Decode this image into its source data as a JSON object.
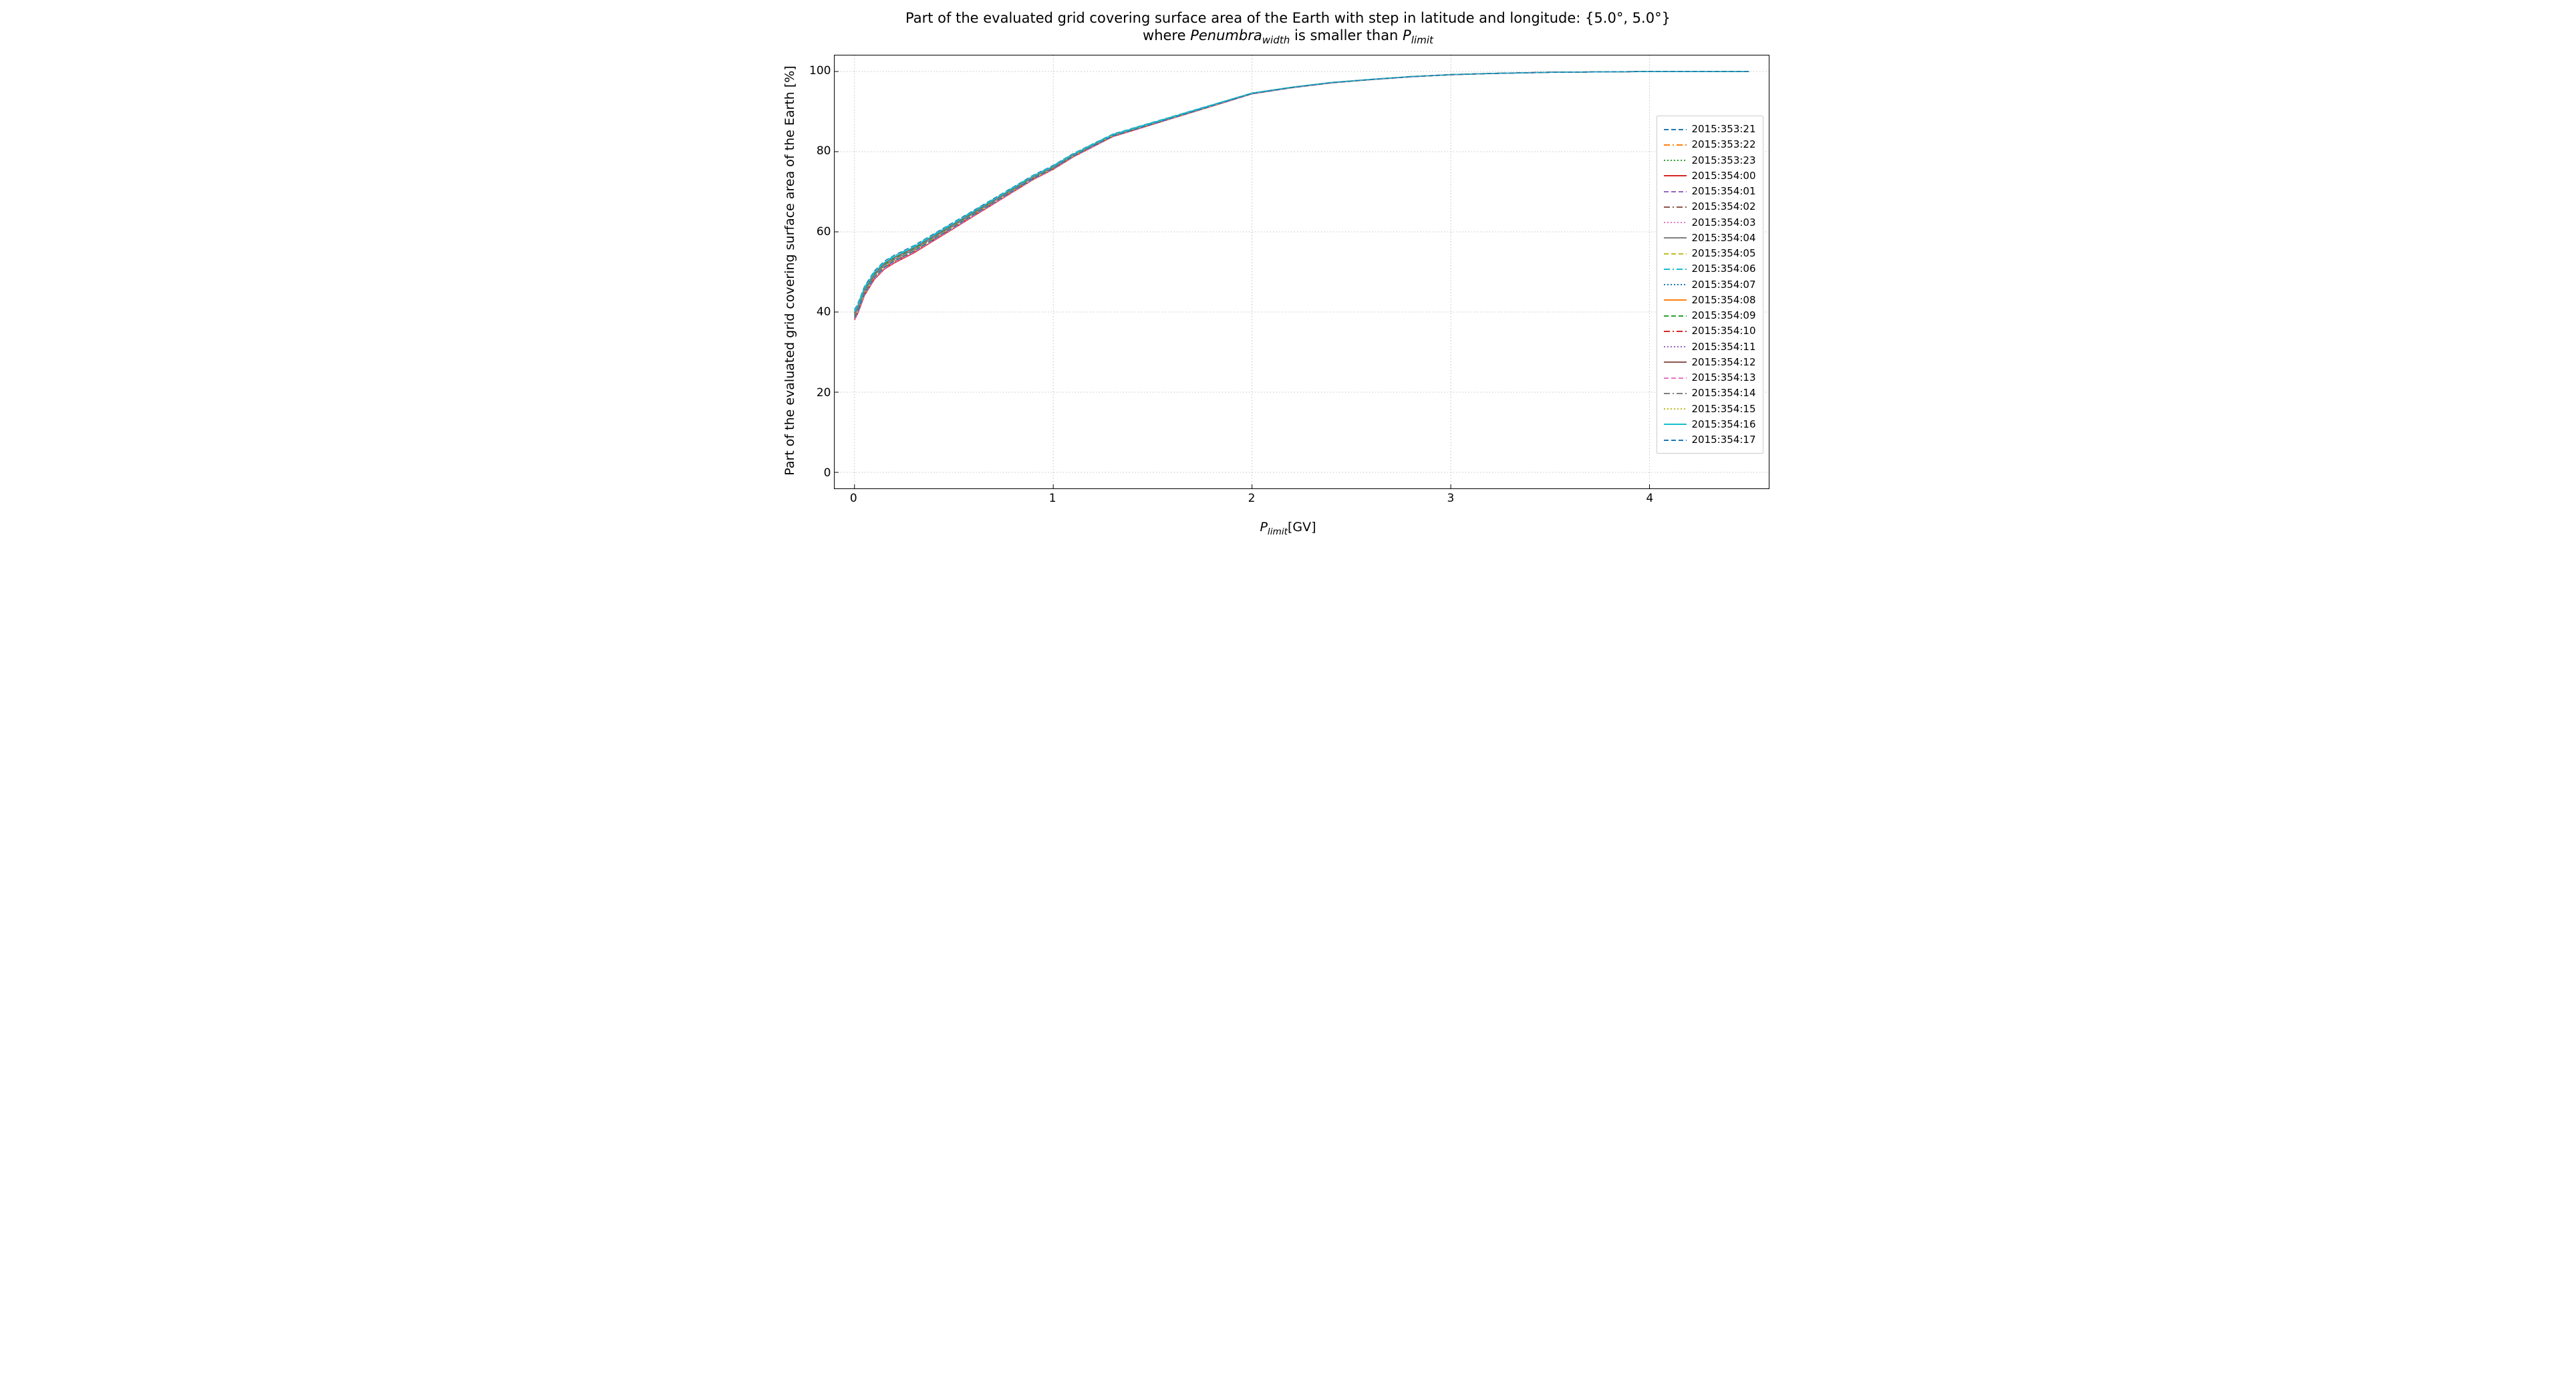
{
  "chart": {
    "type": "line",
    "title_line1_pre": "Part of the evaluated grid covering surface area of the Earth with step in latitude and longitude: {5.0°, 5.0°}",
    "title_line2_pre": "where ",
    "title_line2_ital1": "Penumbra",
    "title_line2_sub1": "width",
    "title_line2_mid": " is smaller than ",
    "title_line2_ital2": "P",
    "title_line2_sub2": "limit",
    "title_fontsize": 21,
    "xlabel_ital": "P",
    "xlabel_sub": "limit",
    "xlabel_suffix": "[GV]",
    "ylabel": "Part of the evaluated grid covering surface area of the Earth  [%]",
    "label_fontsize": 19,
    "tick_fontsize": 17,
    "xlim": [
      -0.1,
      4.6
    ],
    "ylim": [
      -4,
      104
    ],
    "xticks": [
      0,
      1,
      2,
      3,
      4
    ],
    "yticks": [
      0,
      20,
      40,
      60,
      80,
      100
    ],
    "grid_color": "#b0b0b0",
    "grid_dash": "1.5 3",
    "grid_width": 0.8,
    "background_color": "#ffffff",
    "spine_color": "#000000",
    "tick_color": "#000000",
    "legend_fontsize": 15,
    "legend_border_color": "#cccccc",
    "line_width": 1.6,
    "linestyles_cycle": [
      "solid",
      "dashed",
      "dashdot",
      "dotted"
    ],
    "linestyle_dash_defs": {
      "solid": "",
      "dashed": "7 4",
      "dashdot": "9 4 2 4",
      "dotted": "2 3"
    },
    "series": [
      {
        "label": "2015:353:21",
        "color": "#1f77b4",
        "style": "dashed",
        "dy": 1.5
      },
      {
        "label": "2015:353:22",
        "color": "#ff7f0e",
        "style": "dashdot",
        "dy": 1.2
      },
      {
        "label": "2015:353:23",
        "color": "#2ca02c",
        "style": "dotted",
        "dy": 0.9
      },
      {
        "label": "2015:354:00",
        "color": "#d62728",
        "style": "solid",
        "dy": -1.0
      },
      {
        "label": "2015:354:01",
        "color": "#9467bd",
        "style": "dashed",
        "dy": 0.5
      },
      {
        "label": "2015:354:02",
        "color": "#8c564b",
        "style": "dashdot",
        "dy": -0.6
      },
      {
        "label": "2015:354:03",
        "color": "#e377c2",
        "style": "dotted",
        "dy": -0.8
      },
      {
        "label": "2015:354:04",
        "color": "#7f7f7f",
        "style": "solid",
        "dy": 0.2
      },
      {
        "label": "2015:354:05",
        "color": "#bcbd22",
        "style": "dashed",
        "dy": -0.3
      },
      {
        "label": "2015:354:06",
        "color": "#17becf",
        "style": "dashdot",
        "dy": 1.3
      },
      {
        "label": "2015:354:07",
        "color": "#1f77b4",
        "style": "dotted",
        "dy": 0.0
      },
      {
        "label": "2015:354:08",
        "color": "#ff7f0e",
        "style": "solid",
        "dy": 0.7
      },
      {
        "label": "2015:354:09",
        "color": "#2ca02c",
        "style": "dashed",
        "dy": 0.4
      },
      {
        "label": "2015:354:10",
        "color": "#d62728",
        "style": "dashdot",
        "dy": -0.5
      },
      {
        "label": "2015:354:11",
        "color": "#9467bd",
        "style": "dotted",
        "dy": 0.3
      },
      {
        "label": "2015:354:12",
        "color": "#8c564b",
        "style": "solid",
        "dy": 0.8
      },
      {
        "label": "2015:354:13",
        "color": "#e377c2",
        "style": "dashed",
        "dy": -0.7
      },
      {
        "label": "2015:354:14",
        "color": "#7f7f7f",
        "style": "dashdot",
        "dy": 0.1
      },
      {
        "label": "2015:354:15",
        "color": "#bcbd22",
        "style": "dotted",
        "dy": -0.2
      },
      {
        "label": "2015:354:16",
        "color": "#17becf",
        "style": "solid",
        "dy": 1.0
      },
      {
        "label": "2015:354:17",
        "color": "#1f77b4",
        "style": "dashed",
        "dy": -0.4
      }
    ],
    "base_curve": {
      "x": [
        0.0,
        0.02,
        0.05,
        0.1,
        0.15,
        0.2,
        0.3,
        0.4,
        0.5,
        0.6,
        0.7,
        0.8,
        0.9,
        1.0,
        1.1,
        1.2,
        1.3,
        1.4,
        1.5,
        1.6,
        1.7,
        1.8,
        1.9,
        2.0,
        2.2,
        2.4,
        2.6,
        2.8,
        3.0,
        3.2,
        3.5,
        4.0,
        4.5
      ],
      "y": [
        39.0,
        41.0,
        45.0,
        49.0,
        51.5,
        53.0,
        55.5,
        58.5,
        61.5,
        64.5,
        67.5,
        70.5,
        73.5,
        76.0,
        79.0,
        81.5,
        84.0,
        85.5,
        87.0,
        88.5,
        90.0,
        91.5,
        93.0,
        94.5,
        96.0,
        97.2,
        98.0,
        98.7,
        99.2,
        99.5,
        99.8,
        100.0,
        100.0
      ]
    }
  }
}
